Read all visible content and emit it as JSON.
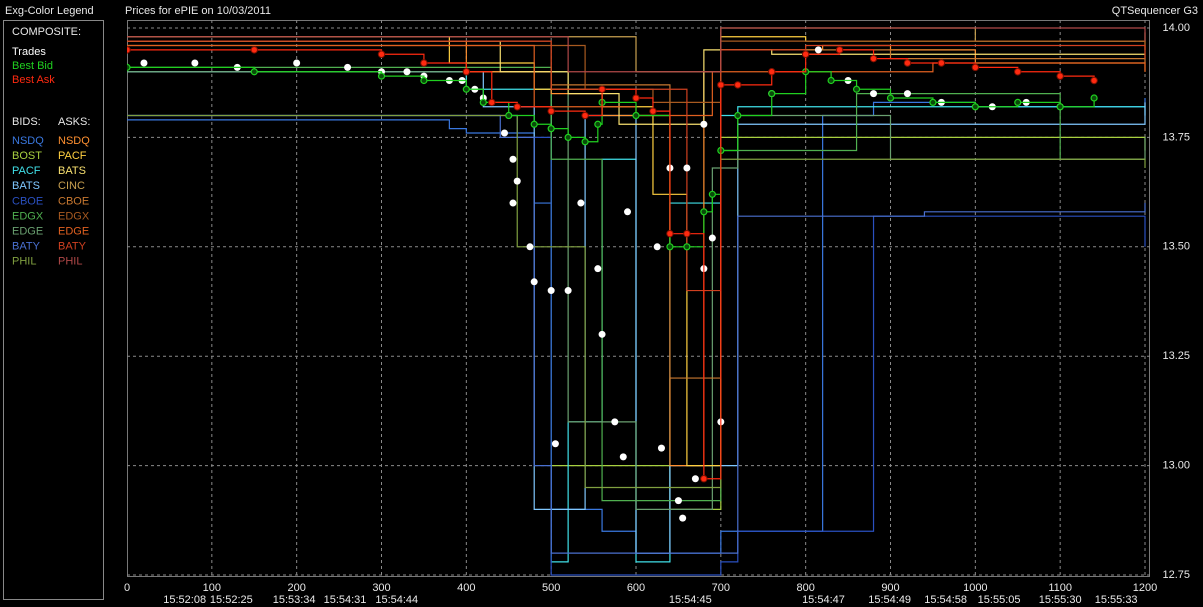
{
  "panel_title": "Exg-Color Legend",
  "app_name": "QTSequencer G3",
  "chart_data": {
    "type": "step",
    "title": "Prices for  ePIE  on  10/03/2011",
    "xlim": [
      0,
      1200
    ],
    "ylim": [
      12.75,
      14.0
    ],
    "xticks": [
      0,
      100,
      200,
      300,
      400,
      500,
      600,
      700,
      800,
      900,
      1000,
      1100,
      1200
    ],
    "yticks": [
      {
        "value": 12.75,
        "label": "12.75"
      },
      {
        "value": 13.0,
        "label": "13.00"
      },
      {
        "value": 13.25,
        "label": "13.25"
      },
      {
        "value": 13.5,
        "label": "13.50"
      },
      {
        "value": 13.75,
        "label": "13.75"
      },
      {
        "value": 14.0,
        "label": "14.00"
      }
    ],
    "time_ticks": [
      {
        "value": 68,
        "label": "15:52:08"
      },
      {
        "value": 123,
        "label": "15:52:25"
      },
      {
        "value": 197,
        "label": "15:53:34"
      },
      {
        "value": 257,
        "label": "15:54:31"
      },
      {
        "value": 318,
        "label": "15:54:44"
      },
      {
        "value": 664,
        "label": "15:54:45"
      },
      {
        "value": 821,
        "label": "15:54:47"
      },
      {
        "value": 899,
        "label": "15:54:49"
      },
      {
        "value": 965,
        "label": "15:54:58"
      },
      {
        "value": 1028,
        "label": "15:55:05"
      },
      {
        "value": 1100,
        "label": "15:55:30"
      },
      {
        "value": 1166,
        "label": "15:55:33"
      }
    ],
    "grid": true,
    "groups": [
      {
        "title": "COMPOSITE:",
        "series": [
          {
            "name": "Trades",
            "color": "#ffffff",
            "line": false,
            "marker": "dot",
            "x": [
              20,
              80,
              130,
              200,
              260,
              300,
              330,
              350,
              380,
              395,
              410,
              420,
              445,
              455,
              460,
              455,
              475,
              480,
              500,
              505,
              520,
              535,
              555,
              560,
              575,
              585,
              590,
              625,
              630,
              640,
              650,
              655,
              660,
              670,
              680,
              690,
              700,
              680,
              760,
              815,
              850,
              880,
              920,
              960,
              1020,
              1060,
              1100
            ],
            "values": [
              13.92,
              13.92,
              13.91,
              13.92,
              13.91,
              13.9,
              13.9,
              13.89,
              13.88,
              13.88,
              13.86,
              13.84,
              13.76,
              13.7,
              13.65,
              13.6,
              13.5,
              13.42,
              13.4,
              13.05,
              13.4,
              13.6,
              13.45,
              13.3,
              13.1,
              13.02,
              13.58,
              13.5,
              13.04,
              13.68,
              12.92,
              12.88,
              13.68,
              12.97,
              13.45,
              13.52,
              13.1,
              13.78,
              13.85,
              13.95,
              13.88,
              13.85,
              13.85,
              13.83,
              13.82,
              13.83,
              13.82
            ]
          },
          {
            "name": "Best Bid",
            "color": "#20d020",
            "line": true,
            "marker": "ring",
            "x": [
              0,
              150,
              300,
              350,
              400,
              420,
              450,
              480,
              500,
              520,
              540,
              555,
              560,
              600,
              640,
              660,
              680,
              690,
              700,
              720,
              760,
              800,
              830,
              860,
              900,
              950,
              1000,
              1050,
              1100,
              1140
            ],
            "values": [
              13.91,
              13.9,
              13.89,
              13.88,
              13.86,
              13.83,
              13.8,
              13.78,
              13.77,
              13.75,
              13.74,
              13.78,
              13.83,
              13.8,
              13.5,
              13.5,
              13.58,
              13.62,
              13.72,
              13.8,
              13.85,
              13.9,
              13.88,
              13.86,
              13.84,
              13.83,
              13.82,
              13.83,
              13.82,
              13.84
            ]
          },
          {
            "name": "Best Ask",
            "color": "#ff2a10",
            "line": true,
            "marker": "disc",
            "x": [
              0,
              150,
              300,
              350,
              400,
              430,
              460,
              500,
              540,
              560,
              600,
              620,
              640,
              660,
              680,
              700,
              720,
              760,
              800,
              840,
              880,
              920,
              960,
              1000,
              1050,
              1100,
              1140
            ],
            "values": [
              13.95,
              13.95,
              13.94,
              13.92,
              13.9,
              13.83,
              13.82,
              13.81,
              13.8,
              13.86,
              13.84,
              13.81,
              13.53,
              13.53,
              12.97,
              13.87,
              13.87,
              13.9,
              13.94,
              13.95,
              13.93,
              13.92,
              13.92,
              13.91,
              13.9,
              13.89,
              13.88
            ]
          }
        ]
      },
      {
        "title": "BIDS:",
        "series": [
          {
            "name": "NSDQ",
            "color": "#3a78e0",
            "x": [
              0,
              380,
              400,
              480,
              500,
              560,
              600,
              700,
              800,
              820,
              880,
              1000,
              1200
            ],
            "values": [
              13.79,
              13.77,
              13.76,
              13.6,
              12.9,
              12.85,
              12.8,
              12.85,
              12.85,
              13.8,
              13.83,
              13.82,
              13.84
            ]
          },
          {
            "name": "BOST",
            "color": "#a8d040",
            "x": [
              0,
              500,
              560,
              640,
              700,
              1200
            ],
            "values": [
              13.9,
              13.0,
              13.0,
              12.9,
              13.75,
              13.72
            ]
          },
          {
            "name": "PACF",
            "color": "#40e0e8",
            "x": [
              0,
              400,
              500,
              520,
              560,
              600,
              640,
              700,
              720,
              1200
            ],
            "values": [
              13.9,
              13.86,
              12.78,
              13.1,
              13.7,
              12.78,
              13.6,
              13.8,
              13.82,
              13.8
            ]
          },
          {
            "name": "BATS",
            "color": "#80c8ff",
            "x": [
              0,
              420,
              480,
              540,
              600,
              640,
              720,
              1200
            ],
            "values": [
              13.9,
              13.82,
              12.9,
              13.8,
              12.8,
              13.0,
              13.78,
              13.83
            ]
          },
          {
            "name": "CBOE",
            "color": "#2a50c0",
            "x": [
              0,
              460,
              500,
              700,
              720,
              800,
              880,
              1200
            ],
            "values": [
              13.8,
              13.75,
              12.75,
              12.78,
              12.85,
              12.85,
              13.57,
              13.5
            ]
          },
          {
            "name": "EDGX",
            "color": "#50b050",
            "x": [
              0,
              500,
              560,
              700,
              860,
              1100,
              1200
            ],
            "values": [
              13.91,
              13.7,
              12.92,
              13.72,
              13.85,
              13.7,
              13.7
            ]
          },
          {
            "name": "EDGE",
            "color": "#6aa070",
            "x": [
              0,
              520,
              600,
              690,
              720,
              900,
              1200
            ],
            "values": [
              13.9,
              13.1,
              12.9,
              13.68,
              13.8,
              13.7,
              13.75
            ]
          },
          {
            "name": "BATY",
            "color": "#4a70d0",
            "x": [
              0,
              440,
              480,
              500,
              720,
              940,
              1200
            ],
            "values": [
              13.8,
              13.75,
              13.0,
              12.8,
              13.57,
              13.58,
              13.6
            ]
          },
          {
            "name": "PHIL",
            "color": "#80a040",
            "x": [
              0,
              460,
              540,
              700,
              1200
            ],
            "values": [
              13.8,
              13.5,
              12.95,
              13.7,
              13.68
            ]
          }
        ]
      },
      {
        "title": "ASKS:",
        "series": [
          {
            "name": "NSDQ",
            "color": "#ff9030",
            "x": [
              0,
              400,
              500,
              560,
              640,
              680,
              700,
              820,
              900,
              1000,
              1200
            ],
            "values": [
              13.97,
              13.9,
              13.85,
              13.8,
              13.0,
              13.9,
              13.95,
              13.96,
              13.95,
              13.92,
              13.9
            ]
          },
          {
            "name": "PACF",
            "color": "#ffd040",
            "x": [
              0,
              380,
              480,
              560,
              620,
              660,
              700,
              800,
              1200
            ],
            "values": [
              13.98,
              13.92,
              13.86,
              13.82,
              13.62,
              13.0,
              13.98,
              13.97,
              13.95
            ]
          },
          {
            "name": "BATS",
            "color": "#f8e070",
            "x": [
              0,
              440,
              520,
              580,
              680,
              760,
              1200
            ],
            "values": [
              13.97,
              13.9,
              13.85,
              13.78,
              13.95,
              13.94,
              13.93
            ]
          },
          {
            "name": "CINC",
            "color": "#c8a050",
            "x": [
              0,
              600,
              700,
              1000,
              1200
            ],
            "values": [
              13.98,
              13.9,
              14.0,
              13.97,
              13.99
            ]
          },
          {
            "name": "CBOE",
            "color": "#c87830",
            "x": [
              0,
              500,
              640,
              700,
              900,
              1200
            ],
            "values": [
              13.97,
              13.87,
              13.2,
              13.95,
              13.93,
              13.92
            ]
          },
          {
            "name": "EDGX",
            "color": "#a85a20",
            "x": [
              0,
              540,
              620,
              700,
              1200
            ],
            "values": [
              13.96,
              13.86,
              13.83,
              13.97,
              13.94
            ]
          },
          {
            "name": "EDGE",
            "color": "#e06020",
            "x": [
              0,
              480,
              600,
              690,
              950,
              1200
            ],
            "values": [
              13.96,
              13.82,
              13.8,
              13.9,
              13.92,
              13.9
            ]
          },
          {
            "name": "BATY",
            "color": "#d04020",
            "x": [
              0,
              500,
              660,
              700,
              800,
              1200
            ],
            "values": [
              13.97,
              13.86,
              13.4,
              13.95,
              13.96,
              13.93
            ]
          },
          {
            "name": "PHIL",
            "color": "#b04848",
            "x": [
              0,
              520,
              700,
              1200
            ],
            "values": [
              13.98,
              13.9,
              14.0,
              13.97
            ]
          }
        ]
      }
    ]
  }
}
